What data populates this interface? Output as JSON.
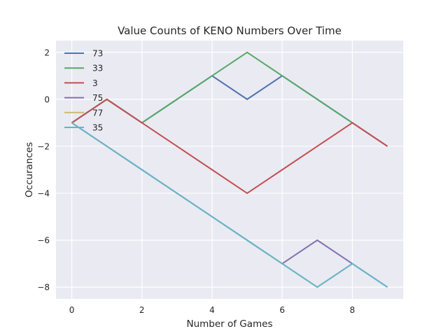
{
  "chart_data": {
    "type": "line",
    "title": "Value Counts of KENO Numbers Over Time",
    "xlabel": "Number of Games",
    "ylabel": "Occurances",
    "xlim": [
      -0.45,
      9.45
    ],
    "ylim": [
      -8.5,
      2.5
    ],
    "xticks": [
      0,
      2,
      4,
      6,
      8
    ],
    "yticks": [
      2,
      0,
      -2,
      -4,
      -6,
      -8
    ],
    "grid": true,
    "legend_position": "top-left",
    "x": [
      0,
      1,
      2,
      3,
      4,
      5,
      6,
      7,
      8,
      9
    ],
    "series": [
      {
        "name": "73",
        "color": "#4c72b0",
        "values": [
          -1,
          0,
          -1,
          0,
          1,
          0,
          1,
          0,
          -1,
          -2
        ]
      },
      {
        "name": "33",
        "color": "#55a868",
        "values": [
          -1,
          0,
          -1,
          0,
          1,
          2,
          1,
          0,
          -1,
          -2
        ]
      },
      {
        "name": "3",
        "color": "#c44e52",
        "values": [
          -1,
          0,
          -1,
          -2,
          -3,
          -4,
          -3,
          -2,
          -1,
          -2
        ]
      },
      {
        "name": "75",
        "color": "#8172b2",
        "values": [
          -1,
          -2,
          -3,
          -4,
          -5,
          -6,
          -7,
          -6,
          -7,
          -8
        ]
      },
      {
        "name": "77",
        "color": "#ccb974",
        "values": [
          -1,
          -2,
          -3,
          -4,
          -5,
          -6,
          -7,
          -8,
          -7,
          -8
        ]
      },
      {
        "name": "35",
        "color": "#64b5cd",
        "values": [
          -1,
          -2,
          -3,
          -4,
          -5,
          -6,
          -7,
          -8,
          -7,
          -8
        ]
      }
    ]
  }
}
